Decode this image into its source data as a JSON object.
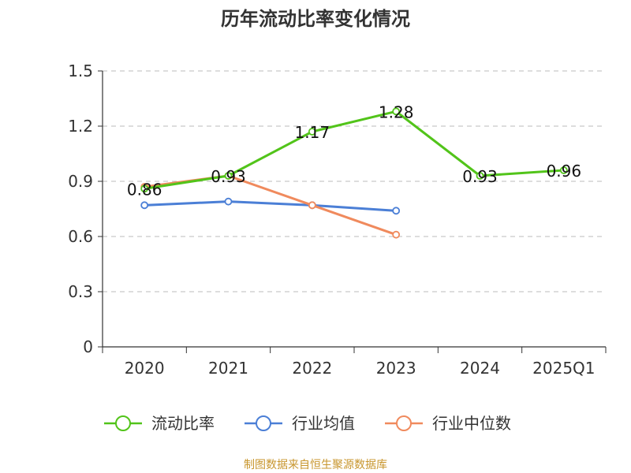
{
  "chart_data": {
    "type": "line",
    "title": "历年流动比率变化情况",
    "categories": [
      "2020",
      "2021",
      "2022",
      "2023",
      "2024",
      "2025Q1"
    ],
    "ylim": [
      0,
      1.5
    ],
    "yticks": [
      "0",
      "0.3",
      "0.6",
      "0.9",
      "1.2",
      "1.5"
    ],
    "grid": true,
    "legend_position": "bottom",
    "series": [
      {
        "name": "流动比率",
        "color": "#52c41a",
        "values": [
          0.86,
          0.93,
          1.17,
          1.28,
          0.93,
          0.96
        ],
        "labels": [
          "0.86",
          "0.93",
          "1.17",
          "1.28",
          "0.93",
          "0.96"
        ]
      },
      {
        "name": "行业均值",
        "color": "#4b7fd6",
        "values": [
          0.77,
          0.79,
          0.77,
          0.74,
          null,
          null
        ]
      },
      {
        "name": "行业中位数",
        "color": "#f08a5d",
        "values": [
          0.87,
          0.93,
          0.77,
          0.61,
          null,
          null
        ]
      }
    ]
  },
  "source": {
    "text": "制图数据来自恒生聚源数据库",
    "color": "#c8962e"
  }
}
